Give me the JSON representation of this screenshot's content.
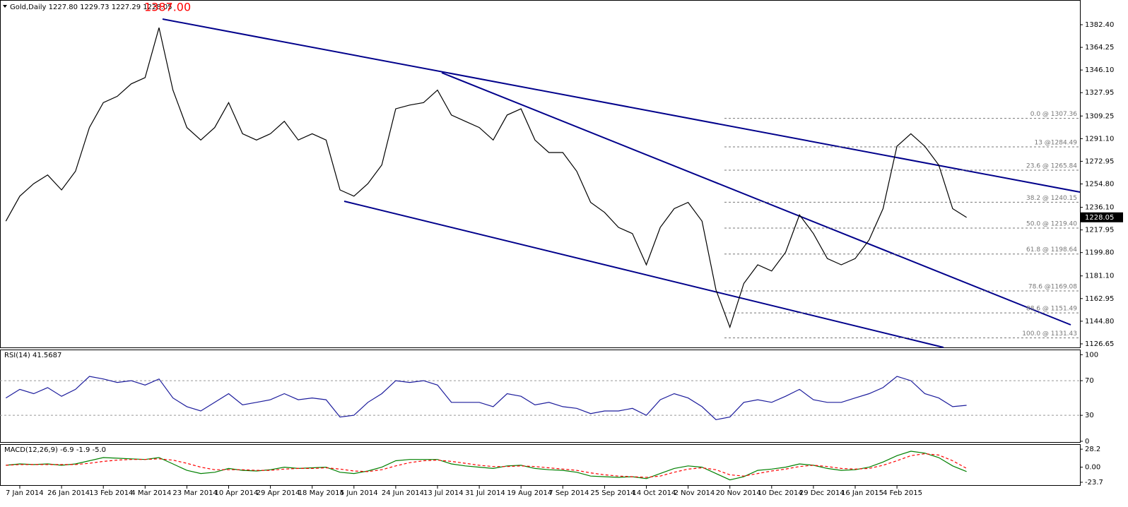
{
  "chart_data": [
    {
      "type": "line",
      "title": "Gold,Daily 1227.80 1229.73 1227.29 1228.05",
      "annotation": "1387.00",
      "color": "#000000",
      "categories": [
        null,
        "7 Jan 2014",
        null,
        null,
        "26 Jan 2014",
        null,
        null,
        "13 Feb 2014",
        null,
        null,
        "4 Mar 2014",
        null,
        null,
        "23 Mar 2014",
        null,
        null,
        "10 Apr 2014",
        null,
        null,
        "29 Apr 2014",
        null,
        null,
        "18 May 2014",
        null,
        null,
        "5 Jun 2014",
        null,
        null,
        "24 Jun 2014",
        null,
        null,
        "13 Jul 2014",
        null,
        null,
        "31 Jul 2014",
        null,
        null,
        "19 Aug 2014",
        null,
        null,
        "7 Sep 2014",
        null,
        null,
        "25 Sep 2014",
        null,
        null,
        "14 Oct 2014",
        null,
        null,
        "2 Nov 2014",
        null,
        null,
        "20 Nov 2014",
        null,
        null,
        "10 Dec 2014",
        null,
        null,
        "29 Dec 2014",
        null,
        null,
        "16 Jan 2015",
        null,
        null,
        "4 Feb 2015",
        null,
        null,
        null,
        null,
        null
      ],
      "values": [
        1225,
        1245,
        1255,
        1262,
        1250,
        1265,
        1300,
        1320,
        1325,
        1335,
        1340,
        1380,
        1330,
        1300,
        1290,
        1300,
        1320,
        1295,
        1290,
        1295,
        1305,
        1290,
        1295,
        1290,
        1250,
        1245,
        1255,
        1270,
        1315,
        1318,
        1320,
        1330,
        1310,
        1305,
        1300,
        1290,
        1310,
        1315,
        1290,
        1280,
        1280,
        1265,
        1240,
        1232,
        1220,
        1215,
        1190,
        1220,
        1235,
        1240,
        1225,
        1170,
        1140,
        1175,
        1190,
        1185,
        1200,
        1230,
        1215,
        1195,
        1190,
        1195,
        1210,
        1235,
        1285,
        1295,
        1285,
        1270,
        1235,
        1228
      ],
      "last_price": 1228.05,
      "ylim": [
        1123.8,
        1402.2
      ],
      "yticks": [
        {
          "value": 1382.4,
          "label": "1382.40"
        },
        {
          "value": 1364.25,
          "label": "1364.25"
        },
        {
          "value": 1346.1,
          "label": "1346.10"
        },
        {
          "value": 1327.95,
          "label": "1327.95"
        },
        {
          "value": 1309.25,
          "label": "1309.25"
        },
        {
          "value": 1291.1,
          "label": "1291.10"
        },
        {
          "value": 1272.95,
          "label": "1272.95"
        },
        {
          "value": 1254.8,
          "label": "1254.80"
        },
        {
          "value": 1236.1,
          "label": "1236.10"
        },
        {
          "value": 1217.95,
          "label": "1217.95"
        },
        {
          "value": 1199.8,
          "label": "1199.80"
        },
        {
          "value": 1181.1,
          "label": "1181.10"
        },
        {
          "value": 1162.95,
          "label": "1162.95"
        },
        {
          "value": 1144.8,
          "label": "1144.80"
        },
        {
          "value": 1126.65,
          "label": "1126.65"
        }
      ],
      "levels": [
        {
          "value": 1307.36,
          "label": "0.0 @ 1307.36"
        },
        {
          "value": 1284.49,
          "label": "13 @1284.49"
        },
        {
          "value": 1265.84,
          "label": "23.6 @ 1265.84"
        },
        {
          "value": 1240.15,
          "label": "38.2 @ 1240.15"
        },
        {
          "value": 1219.4,
          "label": "50.0 @ 1219.40"
        },
        {
          "value": 1198.64,
          "label": "61.8 @ 1198.64"
        },
        {
          "value": 1169.08,
          "label": "78.6 @1169.08"
        },
        {
          "value": 1151.49,
          "label": "88.6 @ 1151.49"
        },
        {
          "value": 1131.43,
          "label": "100.0 @ 1131.43"
        }
      ]
    },
    {
      "type": "line",
      "title": "RSI(14) 41.5687",
      "color": "#1c1c9c",
      "values": [
        50,
        60,
        55,
        62,
        52,
        60,
        75,
        72,
        68,
        70,
        65,
        72,
        50,
        40,
        35,
        45,
        55,
        42,
        45,
        48,
        55,
        48,
        50,
        48,
        28,
        30,
        45,
        55,
        70,
        68,
        70,
        65,
        45,
        45,
        45,
        40,
        55,
        52,
        42,
        45,
        40,
        38,
        32,
        35,
        35,
        38,
        30,
        48,
        55,
        50,
        40,
        25,
        28,
        45,
        48,
        45,
        52,
        60,
        48,
        45,
        45,
        50,
        55,
        62,
        75,
        70,
        55,
        50,
        40,
        41.5687
      ],
      "ylim": [
        -1.7,
        106
      ],
      "yticks": [
        100,
        70,
        30,
        0
      ],
      "levels": [
        70,
        30
      ]
    },
    {
      "type": "line",
      "title": "MACD(12,26,9) -6.9 -1.9 -5.0",
      "series": [
        {
          "color": "#008000",
          "values": [
            3,
            5,
            4,
            5,
            3,
            5,
            10,
            15,
            14,
            13,
            12,
            15,
            5,
            -5,
            -10,
            -8,
            -2,
            -5,
            -6,
            -4,
            0,
            -2,
            -1,
            0,
            -8,
            -10,
            -6,
            0,
            10,
            12,
            12,
            12,
            5,
            2,
            0,
            -2,
            2,
            3,
            -2,
            -4,
            -5,
            -8,
            -14,
            -15,
            -16,
            -15,
            -18,
            -10,
            -2,
            2,
            0,
            -10,
            -20,
            -15,
            -5,
            -3,
            0,
            5,
            3,
            -2,
            -5,
            -4,
            0,
            8,
            18,
            25,
            22,
            15,
            2,
            -6.9
          ]
        },
        {
          "color": "#ff0000",
          "dashed": true,
          "values": [
            3,
            4,
            4,
            4,
            4,
            4,
            6,
            9,
            11,
            12,
            12,
            13,
            11,
            6,
            0,
            -4,
            -4,
            -4,
            -5,
            -5,
            -3,
            -2,
            -2,
            -1,
            -3,
            -6,
            -7,
            -4,
            2,
            7,
            10,
            11,
            9,
            6,
            3,
            1,
            1,
            2,
            1,
            -1,
            -3,
            -5,
            -9,
            -12,
            -14,
            -15,
            -16,
            -14,
            -8,
            -3,
            -1,
            -4,
            -12,
            -14,
            -10,
            -6,
            -3,
            1,
            3,
            1,
            -2,
            -3,
            -2,
            3,
            10,
            18,
            21,
            19,
            10,
            -1.9
          ]
        }
      ],
      "ylim": [
        -29.3,
        34.97
      ],
      "yticks": [
        28.2,
        {
          "value": 0,
          "label": "0.00"
        },
        -23.7
      ]
    }
  ]
}
